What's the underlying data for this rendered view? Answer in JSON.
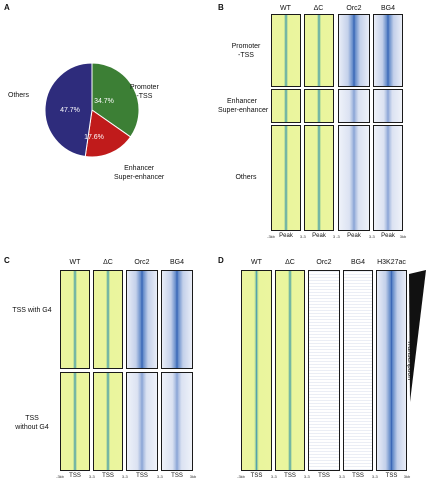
{
  "panels": {
    "A": {
      "label": "A",
      "chart_data": {
        "type": "pie",
        "categories": [
          "Promoter -TSS",
          "Enhancer Super-enhancer",
          "Others"
        ],
        "values": [
          34.7,
          17.6,
          47.7
        ],
        "value_labels": [
          "34.7%",
          "17.6%",
          "47.7%"
        ],
        "colors": [
          "#3c7f35",
          "#c01b1b",
          "#2e2c7c"
        ],
        "label_lines": {
          "promoter": [
            "Promoter",
            "-TSS"
          ],
          "enhancer": [
            "Enhancer",
            "Super-enhancer"
          ],
          "others": "Others"
        }
      }
    },
    "B": {
      "label": "B",
      "columns": [
        "WT",
        "ΔC",
        "Orc2",
        "BG4"
      ],
      "groups": [
        [
          "Promoter",
          "-TSS"
        ],
        [
          "Enhancer",
          "Super-enhancer"
        ],
        [
          "Others"
        ]
      ],
      "ticks": [
        "-3kb",
        "Peak",
        "3",
        "-3",
        "Peak",
        "3",
        "-3",
        "Peak",
        "3",
        "-3",
        "Peak",
        "3kb"
      ]
    },
    "C": {
      "label": "C",
      "columns": [
        "WT",
        "ΔC",
        "Orc2",
        "BG4"
      ],
      "groups": [
        [
          "TSS with G4"
        ],
        [
          "TSS",
          "without G4"
        ]
      ],
      "ticks": [
        "-3kb",
        "TSS",
        "3",
        "-3",
        "TSS",
        "3",
        "-3",
        "TSS",
        "3",
        "-3",
        "TSS",
        "3kb"
      ]
    },
    "D": {
      "label": "D",
      "columns": [
        "WT",
        "ΔC",
        "Orc2",
        "BG4",
        "H3K27ac"
      ],
      "side_label": "Transcription",
      "ticks": [
        "-3kb",
        "TSS",
        "3",
        "-3",
        "TSS",
        "3",
        "-3",
        "TSS",
        "3",
        "-3",
        "TSS",
        "3",
        "-3",
        "TSS",
        "3kb"
      ]
    }
  },
  "colors": {
    "signal_yellow": "#ebf59e",
    "signal_blue": "#2e5cb0",
    "border": "#1a1a1a"
  }
}
